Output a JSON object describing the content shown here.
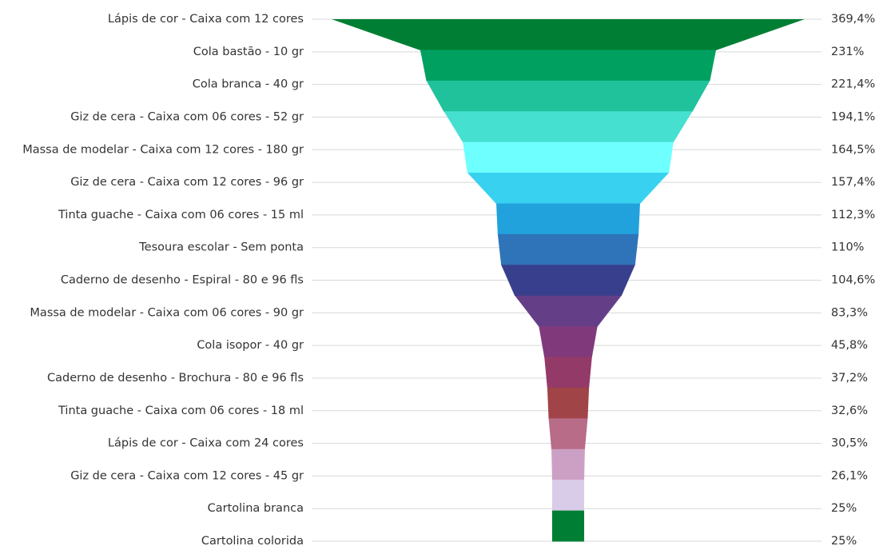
{
  "chart_data": {
    "type": "funnel",
    "categories": [
      "Lápis de cor - Caixa com 12 cores",
      "Cola bastão - 10 gr",
      "Cola branca - 40 gr",
      "Giz de cera - Caixa com 06 cores - 52 gr",
      "Massa de modelar - Caixa com 12 cores - 180 gr",
      "Giz de cera - Caixa com 12 cores - 96 gr",
      "Tinta guache - Caixa com 06 cores - 15 ml",
      "Tesoura escolar - Sem ponta",
      "Caderno de desenho - Espiral - 80 e 96 fls",
      "Massa de modelar - Caixa com 06 cores - 90 gr",
      "Cola isopor  - 40 gr",
      "Caderno de desenho - Brochura - 80 e 96 fls",
      "Tinta guache - Caixa com 06 cores - 18 ml",
      "Lápis de cor - Caixa com 24 cores",
      "Giz de cera - Caixa com 12 cores - 45 gr",
      "Cartolina branca",
      "Cartolina colorida"
    ],
    "values": [
      369.4,
      231,
      221.4,
      194.1,
      164.5,
      157.4,
      112.3,
      110,
      104.6,
      83.3,
      45.8,
      37.2,
      32.6,
      30.5,
      26.1,
      25,
      25
    ],
    "value_labels": [
      "369,4%",
      "231%",
      "221,4%",
      "194,1%",
      "164,5%",
      "157,4%",
      "112,3%",
      "110%",
      "104,6%",
      "83,3%",
      "45,8%",
      "37,2%",
      "32,6%",
      "30,5%",
      "26,1%",
      "25%",
      "25%"
    ],
    "colors": [
      "#007f34",
      "#00a060",
      "#20c29c",
      "#45e0d0",
      "#6effff",
      "#38d2f0",
      "#22a2dc",
      "#2f74b8",
      "#383f8c",
      "#643f88",
      "#803a7c",
      "#943a68",
      "#a04448",
      "#b86c88",
      "#cca0c4",
      "#d8cce8"
    ]
  }
}
